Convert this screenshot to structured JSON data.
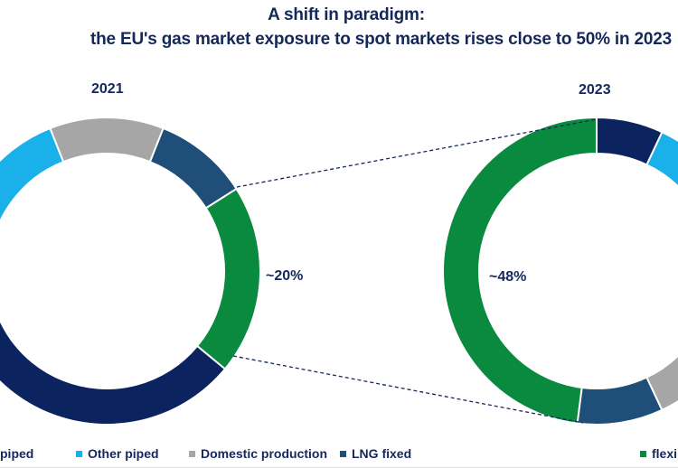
{
  "chart_data": [
    {
      "type": "donut",
      "title": "A shift in paradigm:",
      "subtitle": "the EU's gas market exposure to spot markets rises close to 50% in 2023",
      "label": "2021",
      "start_percent": -6,
      "series": [
        {
          "name": "Domestic production",
          "value": 12
        },
        {
          "name": "LNG fixed",
          "value": 10
        },
        {
          "name": "flexible",
          "value": 20,
          "annotation": "~20%"
        },
        {
          "name": "piped",
          "value": 40
        },
        {
          "name": "Other piped",
          "value": 18
        }
      ]
    },
    {
      "type": "donut",
      "label": "2023",
      "start_percent": 0,
      "series": [
        {
          "name": "piped",
          "value": 7
        },
        {
          "name": "Other piped",
          "value": 30
        },
        {
          "name": "Domestic production",
          "value": 6
        },
        {
          "name": "LNG fixed",
          "value": 9
        },
        {
          "name": "flexible",
          "value": 48,
          "annotation": "~48%"
        }
      ]
    }
  ],
  "legend": [
    {
      "label": "piped",
      "color": "#0b2460"
    },
    {
      "label": "Other piped",
      "color": "#1ab0ea"
    },
    {
      "label": "Domestic production",
      "color": "#a6a6a6"
    },
    {
      "label": "LNG fixed",
      "color": "#1f4e79"
    },
    {
      "label": "flexible",
      "color": "#0a8a3e"
    }
  ],
  "colors": {
    "piped": "#0b2460",
    "Other piped": "#1ab0ea",
    "Domestic production": "#a6a6a6",
    "LNG fixed": "#1f4e79",
    "flexible": "#0a8a3e",
    "text": "#14285a"
  }
}
